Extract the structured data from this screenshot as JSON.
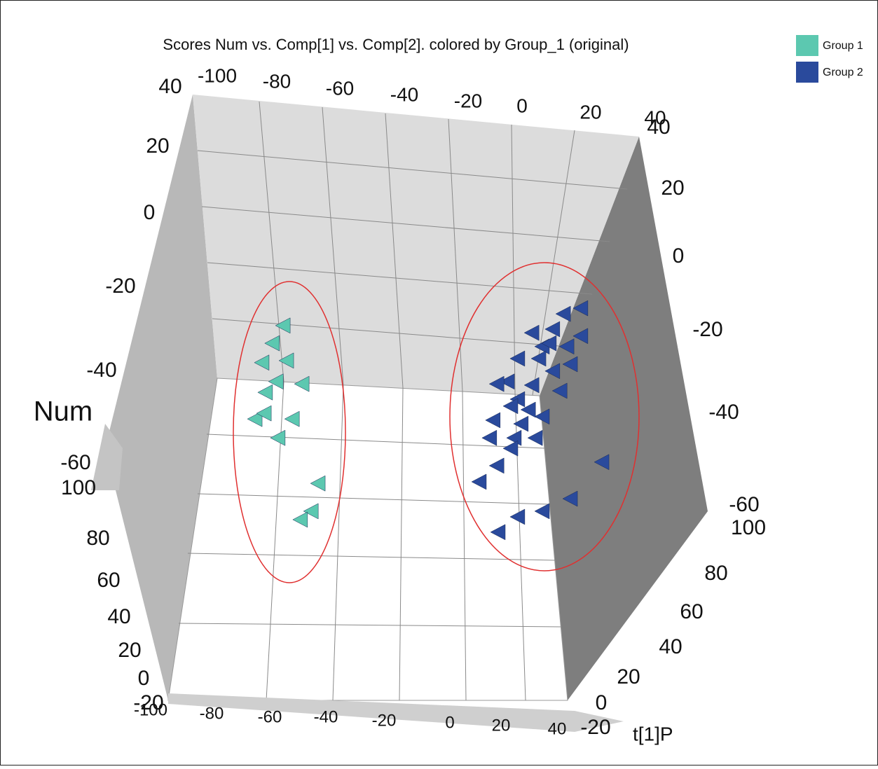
{
  "chart_data": {
    "type": "scatter3d",
    "title": "Scores Num vs. Comp[1] vs. Comp[2]. colored by Group_1 (original)",
    "x_label": "t[1]P",
    "z_label": "Num",
    "xlim": [
      -100,
      40
    ],
    "ylim": [
      -60,
      40
    ],
    "top_ticks": [
      -100,
      -80,
      -60,
      -40,
      -20,
      0,
      20,
      40
    ],
    "left_ticks": [
      40,
      20,
      0,
      -20,
      -40,
      -60
    ],
    "right_ticks": [
      40,
      20,
      0,
      -20,
      -40,
      -60
    ],
    "bottom_ticks": [
      -100,
      -80,
      -60,
      -40,
      -20,
      0,
      20,
      40
    ],
    "left_depth_ticks": [
      100,
      80,
      60,
      40,
      20,
      0,
      -20
    ],
    "right_depth_ticks": [
      100,
      80,
      60,
      40,
      20,
      0,
      -20
    ],
    "series": [
      {
        "name": "Group 1",
        "color": "#5cc8b0",
        "x": [
          -72.2,
          -75.6,
          -71.1,
          -78.9,
          -74.4,
          -66.2,
          -77.8,
          -81.1,
          -78.2,
          -69.3,
          -73.8,
          -61.1,
          -63.3,
          -66.7
        ],
        "values": [
          -19.1,
          -23.5,
          -27.8,
          -28.3,
          -33.0,
          -33.6,
          -35.7,
          -42.3,
          -40.9,
          -42.3,
          -47.0,
          -58.3,
          -65.2,
          -67.3
        ]
      },
      {
        "name": "Group 2",
        "color": "#2a4a9c",
        "x": [
          22.2,
          16.7,
          6.7,
          13.3,
          22.2,
          10.0,
          17.8,
          2.2,
          8.9,
          18.9,
          13.3,
          -1.1,
          6.7,
          15.6,
          -4.4,
          2.2,
          0,
          10.0,
          -5.6,
          3.3,
          -6.7,
          1.1,
          7.8,
          0,
          -4.4,
          28.9,
          -10,
          18.9,
          10.0,
          2.2,
          -4.0,
          5.6,
          12.2
        ],
        "values": [
          -14.8,
          -16.2,
          -20.9,
          -20.0,
          -21.7,
          -24.3,
          -24.3,
          -27.3,
          -27.3,
          -28.7,
          -30.4,
          -33.0,
          -33.9,
          -35.3,
          -33.6,
          -37.4,
          -39.1,
          -41.7,
          -42.6,
          -43.5,
          -47.0,
          -47.0,
          -47.0,
          -49.6,
          -53.9,
          -53.0,
          -57.9,
          -62.1,
          -65.2,
          -66.6,
          -70.4,
          -40.0,
          -23.5
        ]
      }
    ]
  }
}
